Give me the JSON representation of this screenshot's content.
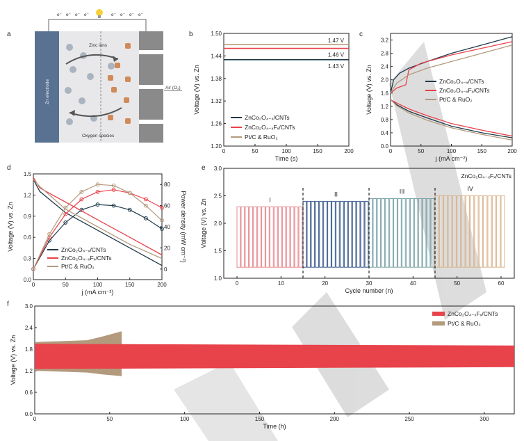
{
  "panel_labels": [
    "a",
    "b",
    "c",
    "d",
    "e",
    "f"
  ],
  "schematic": {
    "electron_label": "e⁻",
    "zn_electrode": "Zn electrode",
    "zinc_ions": "Zinc ions",
    "oxygen_species": "Oxygen species",
    "air": "Air (O₂)"
  },
  "series_names": {
    "s1": "ZnCo₂O₄₋ₓ/CNTs",
    "s2": "ZnCo₂O₄₋ₓFₓ/CNTs",
    "s3": "Pt/C & RuO₂"
  },
  "colors": {
    "s1": "#1f3a4a",
    "s2": "#e8424a",
    "s3": "#b39a7c"
  },
  "chart_data": [
    {
      "panel": "b",
      "type": "line",
      "xlabel": "Time (s)",
      "ylabel": "Voltage (V) vs. Zn",
      "xlim": [
        0,
        200
      ],
      "ylim": [
        1.2,
        1.5
      ],
      "xticks": [
        0,
        50,
        100,
        150,
        200
      ],
      "yticks": [
        1.2,
        1.26,
        1.32,
        1.38,
        1.44,
        1.5
      ],
      "ytick_labels": [
        "1.20",
        "1.26",
        "1.32",
        "1.38",
        "1.44",
        "1.50"
      ],
      "series": [
        {
          "name": "ZnCo₂O₄₋ₓ/CNTs",
          "x": [
            0,
            200
          ],
          "y": [
            1.43,
            1.43
          ]
        },
        {
          "name": "ZnCo₂O₄₋ₓFₓ/CNTs",
          "x": [
            0,
            200
          ],
          "y": [
            1.46,
            1.46
          ]
        },
        {
          "name": "Pt/C & RuO₂",
          "x": [
            0,
            200
          ],
          "y": [
            1.47,
            1.47
          ]
        }
      ],
      "annotations": [
        "1.47 V",
        "1.46 V",
        "1.43 V"
      ]
    },
    {
      "panel": "c",
      "type": "line",
      "xlabel": "j (mA cm⁻²)",
      "ylabel": "Voltage (V) vs. Zn",
      "xlim": [
        0,
        200
      ],
      "ylim": [
        0,
        3.4
      ],
      "xticks": [
        0,
        50,
        100,
        150,
        200
      ],
      "yticks": [
        0,
        0.4,
        0.8,
        1.2,
        1.6,
        2.0,
        2.4,
        2.8,
        3.2
      ],
      "ytick_labels": [
        "0.0",
        "0.4",
        "0.8",
        "1.2",
        "1.6",
        "2.0",
        "2.4",
        "2.8",
        "3.2"
      ],
      "series": [
        {
          "name": "ZnCo₂O₄₋ₓ/CNTs",
          "charge": {
            "x": [
              0,
              5,
              15,
              30,
              60,
              100,
              150,
              200
            ],
            "y": [
              1.6,
              2.0,
              2.2,
              2.35,
              2.55,
              2.8,
              3.05,
              3.3
            ]
          },
          "discharge": {
            "x": [
              0,
              10,
              30,
              60,
              100,
              150,
              200
            ],
            "y": [
              1.4,
              1.25,
              1.05,
              0.85,
              0.6,
              0.4,
              0.25
            ]
          }
        },
        {
          "name": "ZnCo₂O₄₋ₓFₓ/CNTs",
          "charge": {
            "x": [
              0,
              10,
              25,
              30,
              50,
              100,
              150,
              200
            ],
            "y": [
              1.6,
              1.75,
              1.85,
              2.3,
              2.5,
              2.75,
              2.95,
              3.15
            ]
          },
          "discharge": {
            "x": [
              0,
              10,
              30,
              60,
              100,
              150,
              200
            ],
            "y": [
              1.4,
              1.3,
              1.12,
              0.92,
              0.68,
              0.48,
              0.3
            ]
          }
        },
        {
          "name": "Pt/C & RuO₂",
          "charge": {
            "x": [
              0,
              10,
              30,
              60,
              100,
              150,
              200
            ],
            "y": [
              1.6,
              1.9,
              2.15,
              2.35,
              2.55,
              2.8,
              3.05
            ]
          },
          "discharge": {
            "x": [
              0,
              10,
              30,
              60,
              100,
              150,
              200
            ],
            "y": [
              1.4,
              1.22,
              1.0,
              0.78,
              0.55,
              0.35,
              0.18
            ]
          }
        }
      ]
    },
    {
      "panel": "d",
      "type": "line",
      "xlabel": "j (mA cm⁻²)",
      "ylabel": "Voltage (V) vs. Zn",
      "ylabel_right": "Power density (mW cm⁻²)",
      "xlim": [
        0,
        200
      ],
      "ylim": [
        0,
        1.5
      ],
      "ylim_right": [
        -10,
        90
      ],
      "xticks": [
        0,
        50,
        100,
        150,
        200
      ],
      "yticks": [
        0,
        0.3,
        0.6,
        0.9,
        1.2,
        1.5
      ],
      "ytick_labels": [
        "0.0",
        "0.3",
        "0.6",
        "0.9",
        "1.2",
        "1.5"
      ],
      "yticks_right": [
        0,
        20,
        40,
        60,
        80
      ],
      "series": [
        {
          "name": "ZnCo₂O₄₋ₓ/CNTs",
          "polarization": {
            "x": [
              0,
              10,
              50,
              100,
              150,
              200
            ],
            "y": [
              1.42,
              1.25,
              0.95,
              0.7,
              0.45,
              0.2
            ]
          },
          "power": {
            "x": [
              0,
              25,
              50,
              75,
              100,
              125,
              150,
              175,
              200
            ],
            "y": [
              0,
              27,
              44,
              56,
              61,
              60,
              56,
              48,
              38
            ]
          }
        },
        {
          "name": "ZnCo₂O₄₋ₓFₓ/CNTs",
          "polarization": {
            "x": [
              0,
              10,
              50,
              100,
              150,
              200
            ],
            "y": [
              1.45,
              1.3,
              1.1,
              0.85,
              0.6,
              0.35
            ]
          },
          "power": {
            "x": [
              0,
              25,
              50,
              75,
              100,
              125,
              150,
              175,
              200
            ],
            "y": [
              0,
              30,
              52,
              66,
              73,
              75,
              72,
              66,
              58
            ]
          }
        },
        {
          "name": "Pt/C & RuO₂",
          "polarization": {
            "x": [
              0,
              10,
              50,
              100,
              150,
              200
            ],
            "y": [
              1.42,
              1.32,
              1.0,
              0.75,
              0.5,
              0.3
            ]
          },
          "power": {
            "x": [
              0,
              25,
              50,
              75,
              100,
              125,
              150,
              175,
              200
            ],
            "y": [
              0,
              33,
              58,
              73,
              80,
              79,
              72,
              60,
              46
            ]
          }
        }
      ]
    },
    {
      "panel": "e",
      "type": "line",
      "title": "ZnCo₂O₄₋ₓFₓ/CNTs",
      "xlabel": "Cycle number (n)",
      "ylabel": "Voltage (V) vs. Zn",
      "xlim": [
        -3,
        63
      ],
      "ylim": [
        1.0,
        3.0
      ],
      "xticks": [
        0,
        10,
        20,
        30,
        40,
        50,
        60
      ],
      "yticks": [
        1.0,
        1.5,
        2.0,
        2.5,
        3.0
      ],
      "ytick_labels": [
        "1.0",
        "1.5",
        "2.0",
        "2.5",
        "3.0"
      ],
      "segments": [
        {
          "label": "I",
          "x_start": 0,
          "x_end": 15,
          "charge_v": 2.3,
          "discharge_v": 1.2,
          "color": "#e8888f"
        },
        {
          "label": "II",
          "x_start": 15,
          "x_end": 30,
          "charge_v": 2.4,
          "discharge_v": 1.2,
          "color": "#3b5b8c"
        },
        {
          "label": "III",
          "x_start": 30,
          "x_end": 45,
          "charge_v": 2.45,
          "discharge_v": 1.2,
          "color": "#7aa3a8"
        },
        {
          "label": "IV",
          "x_start": 45,
          "x_end": 61,
          "charge_v": 2.5,
          "discharge_v": 1.2,
          "color": "#d8b48c"
        }
      ]
    },
    {
      "panel": "f",
      "type": "area",
      "xlabel": "Time (h)",
      "ylabel": "Voltage (V) vs. Zn",
      "xlim": [
        0,
        320
      ],
      "ylim": [
        0,
        3.0
      ],
      "xticks": [
        0,
        50,
        100,
        150,
        200,
        250,
        300
      ],
      "yticks": [
        0,
        0.6,
        1.2,
        1.8,
        2.4,
        3.0
      ],
      "ytick_labels": [
        "0.0",
        "0.6",
        "1.2",
        "1.8",
        "2.4",
        "3.0"
      ],
      "series": [
        {
          "name": "ZnCo₂O₄₋ₓFₓ/CNTs",
          "x": [
            0,
            320
          ],
          "upper": [
            1.95,
            1.9
          ],
          "lower": [
            1.25,
            1.3
          ]
        },
        {
          "name": "Pt/C & RuO₂",
          "x": [
            0,
            35,
            45,
            58
          ],
          "upper": [
            2.0,
            2.05,
            2.15,
            2.3
          ],
          "lower": [
            1.2,
            1.15,
            1.1,
            1.05
          ]
        }
      ]
    }
  ]
}
